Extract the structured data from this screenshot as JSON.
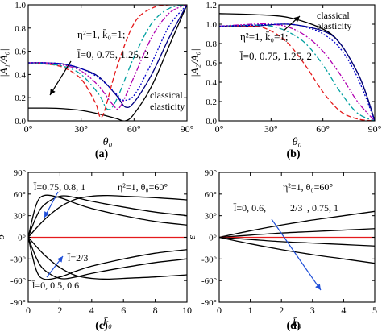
{
  "chart_data": [
    {
      "id": "a",
      "type": "line",
      "panel_label": "(a)",
      "xlabel": "θ₀",
      "ylabel": "|A₁/A₀|",
      "xlim": [
        0,
        90
      ],
      "ylim": [
        0,
        1.0
      ],
      "xticks": [
        "0°",
        "30°",
        "60°",
        "90°"
      ],
      "xtick_values": [
        0,
        30,
        60,
        90
      ],
      "yticks": [
        "0.0",
        "0.2",
        "0.4",
        "0.6",
        "0.8",
        "1.0"
      ],
      "ytick_values": [
        0,
        0.2,
        0.4,
        0.6,
        0.8,
        1.0
      ],
      "annotations": [
        "η²=1, k̄₀=1;",
        "l̄=0, 0.75, 1.25, 2",
        "classical",
        "elasticity"
      ],
      "series": [
        {
          "color": "#000000",
          "dash": "solid",
          "x": [
            0,
            10,
            20,
            30,
            40,
            50,
            55,
            60,
            70,
            80,
            90
          ],
          "y": [
            0.11,
            0.11,
            0.105,
            0.09,
            0.06,
            0.02,
            0.0,
            0.06,
            0.3,
            0.65,
            1.0
          ]
        },
        {
          "color": "#000080",
          "dash": "solid",
          "x": [
            0,
            10,
            20,
            30,
            40,
            50,
            55,
            60,
            70,
            80,
            90
          ],
          "y": [
            0.5,
            0.5,
            0.49,
            0.45,
            0.38,
            0.22,
            0.12,
            0.16,
            0.4,
            0.72,
            1.0
          ]
        },
        {
          "color": "#e41a1c",
          "dash": "dash",
          "x": [
            0,
            10,
            20,
            30,
            38,
            42,
            50,
            60,
            70,
            80,
            90
          ],
          "y": [
            0.5,
            0.49,
            0.46,
            0.36,
            0.16,
            0.04,
            0.45,
            0.84,
            0.97,
            1.0,
            1.0
          ]
        },
        {
          "color": "#00a0a0",
          "dash": "dashdot",
          "x": [
            0,
            10,
            20,
            30,
            40,
            45,
            50,
            60,
            70,
            80,
            90
          ],
          "y": [
            0.5,
            0.49,
            0.47,
            0.4,
            0.23,
            0.1,
            0.18,
            0.55,
            0.84,
            0.97,
            1.0
          ]
        },
        {
          "color": "#b000b0",
          "dash": "dashdotdot",
          "x": [
            0,
            10,
            20,
            30,
            40,
            48,
            52,
            60,
            70,
            80,
            90
          ],
          "y": [
            0.5,
            0.5,
            0.48,
            0.43,
            0.3,
            0.14,
            0.12,
            0.38,
            0.72,
            0.93,
            1.0
          ]
        },
        {
          "color": "#0000cc",
          "dash": "dot",
          "x": [
            0,
            10,
            20,
            30,
            40,
            50,
            53,
            60,
            70,
            80,
            90
          ],
          "y": [
            0.5,
            0.5,
            0.49,
            0.45,
            0.37,
            0.23,
            0.18,
            0.22,
            0.5,
            0.82,
            1.0
          ]
        }
      ]
    },
    {
      "id": "b",
      "type": "line",
      "panel_label": "(b)",
      "xlabel": "θ₀",
      "ylabel": "|A₂/A₀|",
      "xlim": [
        0,
        90
      ],
      "ylim": [
        0,
        1.2
      ],
      "xticks": [
        "0°",
        "30°",
        "60°",
        "90°"
      ],
      "xtick_values": [
        0,
        30,
        60,
        90
      ],
      "yticks": [
        "0.0",
        "0.2",
        "0.4",
        "0.6",
        "0.8",
        "1.0",
        "1.2"
      ],
      "ytick_values": [
        0,
        0.2,
        0.4,
        0.6,
        0.8,
        1.0,
        1.2
      ],
      "annotations": [
        "η²=1, k̄₀=1;",
        "l̄=0, 0.75, 1.25, 2",
        "classical",
        "elasticity"
      ],
      "series": [
        {
          "color": "#000000",
          "dash": "solid",
          "x": [
            0,
            20,
            40,
            60,
            70,
            80,
            85,
            90
          ],
          "y": [
            1.11,
            1.1,
            1.07,
            0.95,
            0.8,
            0.5,
            0.28,
            0.0
          ]
        },
        {
          "color": "#000080",
          "dash": "solid",
          "x": [
            0,
            20,
            40,
            60,
            70,
            80,
            85,
            90
          ],
          "y": [
            0.98,
            0.98,
            1.0,
            0.93,
            0.8,
            0.5,
            0.28,
            0.0
          ]
        },
        {
          "color": "#e41a1c",
          "dash": "dash",
          "x": [
            0,
            20,
            30,
            40,
            50,
            60,
            70,
            80,
            90
          ],
          "y": [
            0.98,
            0.98,
            0.93,
            0.8,
            0.57,
            0.3,
            0.1,
            0.02,
            0.0
          ]
        },
        {
          "color": "#00a0a0",
          "dash": "dashdot",
          "x": [
            0,
            20,
            30,
            40,
            50,
            60,
            70,
            80,
            90
          ],
          "y": [
            0.98,
            0.99,
            0.98,
            0.92,
            0.8,
            0.58,
            0.3,
            0.08,
            0.0
          ]
        },
        {
          "color": "#b000b0",
          "dash": "dashdotdot",
          "x": [
            0,
            20,
            30,
            40,
            50,
            60,
            70,
            80,
            90
          ],
          "y": [
            0.98,
            1.0,
            1.0,
            0.97,
            0.88,
            0.72,
            0.48,
            0.2,
            0.0
          ]
        },
        {
          "color": "#0000cc",
          "dash": "dot",
          "x": [
            0,
            20,
            40,
            50,
            60,
            70,
            80,
            90
          ],
          "y": [
            0.98,
            0.99,
            1.0,
            0.97,
            0.9,
            0.75,
            0.45,
            0.0
          ]
        }
      ]
    },
    {
      "id": "c",
      "type": "line",
      "panel_label": "(c)",
      "xlabel": "k̄₀",
      "ylabel": "δ",
      "xlim": [
        0,
        10
      ],
      "ylim": [
        -90,
        90
      ],
      "xticks": [
        "0",
        "2",
        "4",
        "6",
        "8",
        "10"
      ],
      "xtick_values": [
        0,
        2,
        4,
        6,
        8,
        10
      ],
      "yticks": [
        "-90°",
        "-60°",
        "-30°",
        "0°",
        "30°",
        "60°",
        "90°"
      ],
      "ytick_values": [
        -90,
        -60,
        -30,
        0,
        30,
        60,
        90
      ],
      "annotations": [
        "l̄=0.75, 0.8, 1",
        "η²=1, θ₀=60°",
        "l̄=2/3",
        "l̄=0, 0.5, 0.6"
      ],
      "annotation_colors": {
        "heading": "#00a0a0",
        "red_label": "#e41a1c"
      },
      "series": [
        {
          "label": "l̄=0.75",
          "color": "#000000",
          "x": [
            0,
            0.5,
            1,
            2,
            3,
            4,
            6,
            8,
            10
          ],
          "y": [
            0,
            45,
            58,
            55,
            47,
            40,
            30,
            22,
            17
          ]
        },
        {
          "label": "l̄=0.8",
          "color": "#000000",
          "x": [
            0,
            0.5,
            1,
            2,
            3,
            4,
            6,
            8,
            10
          ],
          "y": [
            0,
            28,
            45,
            57,
            55,
            50,
            42,
            35,
            30
          ]
        },
        {
          "label": "l̄=1",
          "color": "#000000",
          "x": [
            0,
            1,
            2,
            3,
            4,
            5,
            6,
            8,
            10
          ],
          "y": [
            0,
            24,
            42,
            53,
            57,
            58,
            57,
            55,
            52
          ]
        },
        {
          "label": "l̄=2/3",
          "color": "#e41a1c",
          "x": [
            0,
            10
          ],
          "y": [
            0,
            0
          ]
        },
        {
          "label": "l̄=0",
          "color": "#000000",
          "x": [
            0,
            1,
            2,
            3,
            4,
            5,
            6,
            8,
            10
          ],
          "y": [
            0,
            -24,
            -42,
            -53,
            -57,
            -58,
            -57,
            -55,
            -52
          ]
        },
        {
          "label": "l̄=0.5",
          "color": "#000000",
          "x": [
            0,
            0.5,
            1,
            2,
            3,
            4,
            6,
            8,
            10
          ],
          "y": [
            0,
            -28,
            -45,
            -57,
            -55,
            -50,
            -42,
            -35,
            -30
          ]
        },
        {
          "label": "l̄=0.6",
          "color": "#000000",
          "x": [
            0,
            0.5,
            1,
            2,
            3,
            4,
            6,
            8,
            10
          ],
          "y": [
            0,
            -45,
            -58,
            -55,
            -47,
            -40,
            -30,
            -22,
            -17
          ]
        }
      ]
    },
    {
      "id": "d",
      "type": "line",
      "panel_label": "(d)",
      "xlabel": "k̄₀",
      "ylabel": "ε",
      "xlim": [
        0,
        5
      ],
      "ylim": [
        -90,
        90
      ],
      "xticks": [
        "0",
        "1",
        "2",
        "3",
        "4",
        "5"
      ],
      "xtick_values": [
        0,
        1,
        2,
        3,
        4,
        5
      ],
      "yticks": [
        "-90°",
        "-60°",
        "-30°",
        "0°",
        "30°",
        "60°",
        "90°"
      ],
      "ytick_values": [
        -90,
        -60,
        -30,
        0,
        30,
        60,
        90
      ],
      "annotations": [
        "η²=1, θ₀=60°",
        "l̄=0, 0.6,",
        "2/3",
        ", 0.75, 1"
      ],
      "annotation_colors": {
        "heading": "#00a0a0",
        "red_label": "#e41a1c"
      },
      "series": [
        {
          "label": "l̄=0",
          "color": "#000000",
          "x": [
            0,
            1,
            2,
            3,
            4,
            5
          ],
          "y": [
            0,
            9,
            17,
            24,
            30,
            36
          ]
        },
        {
          "label": "l̄=0.6",
          "color": "#000000",
          "x": [
            0,
            1,
            2,
            3,
            4,
            5
          ],
          "y": [
            0,
            3,
            6,
            8,
            10,
            12
          ]
        },
        {
          "label": "l̄=2/3",
          "color": "#e41a1c",
          "x": [
            0,
            5
          ],
          "y": [
            0,
            0
          ]
        },
        {
          "label": "l̄=0.75",
          "color": "#000000",
          "x": [
            0,
            1,
            2,
            3,
            4,
            5
          ],
          "y": [
            0,
            -3,
            -6,
            -8,
            -10,
            -12
          ]
        },
        {
          "label": "l̄=1",
          "color": "#000000",
          "x": [
            0,
            1,
            2,
            3,
            4,
            5
          ],
          "y": [
            0,
            -9,
            -17,
            -24,
            -30,
            -36
          ]
        }
      ]
    }
  ]
}
